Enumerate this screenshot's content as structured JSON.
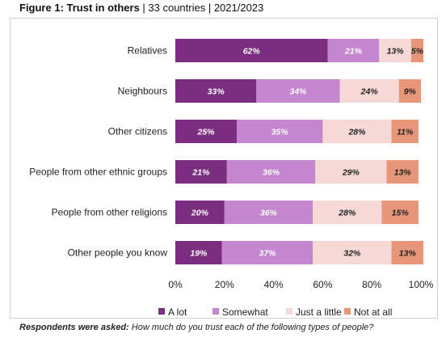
{
  "title": {
    "bold": "Figure 1: Trust in others",
    "rest": " | 33 countries | 2021/2023"
  },
  "footnote": {
    "bold": "Respondents were asked:",
    "rest": " How much do you trust each of the following types of people?"
  },
  "colors": {
    "a_lot": "#7b2d7f",
    "somewhat": "#c386cf",
    "just_a_little": "#f6d9d6",
    "not_at_all": "#e8967a"
  },
  "chart_data": {
    "type": "bar",
    "orientation": "horizontal",
    "stacked": true,
    "categories": [
      "Relatives",
      "Neighbours",
      "Other citizens",
      "People from other ethnic groups",
      "People from other religions",
      "Other people you know"
    ],
    "series": [
      {
        "name": "A lot",
        "values": [
          62,
          33,
          25,
          21,
          20,
          19
        ],
        "color": "#7b2d7f",
        "label_color": "#ffffff"
      },
      {
        "name": "Somewhat",
        "values": [
          21,
          34,
          35,
          36,
          36,
          37
        ],
        "color": "#c386cf",
        "label_color": "#ffffff"
      },
      {
        "name": "Just a little",
        "values": [
          13,
          24,
          28,
          29,
          28,
          32
        ],
        "color": "#f6d9d6",
        "label_color": "#222222"
      },
      {
        "name": "Not at all",
        "values": [
          5,
          9,
          11,
          13,
          15,
          13
        ],
        "color": "#e8967a",
        "label_color": "#222222"
      }
    ],
    "value_suffix": "%",
    "xlim": [
      0,
      100
    ],
    "x_ticks": [
      "0%",
      "20%",
      "40%",
      "60%",
      "80%",
      "100%"
    ],
    "legend_position": "bottom",
    "grid": false
  }
}
